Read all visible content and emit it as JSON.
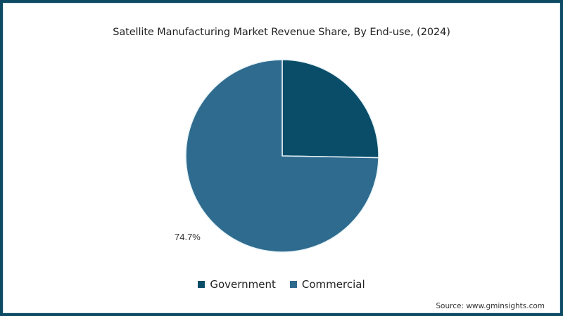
{
  "chart_data": {
    "type": "pie",
    "title": "Satellite Manufacturing Market Revenue Share, By End-use, (2024)",
    "categories": [
      "Government",
      "Commercial"
    ],
    "values": [
      25.3,
      74.7
    ],
    "unit": "%",
    "colors": [
      "#0a4d68",
      "#2f6b8e"
    ],
    "data_labels": [
      {
        "category": "Commercial",
        "text": "74.7%"
      }
    ],
    "start_angle": "12 o'clock, clockwise",
    "legend_position": "bottom"
  },
  "chart": {
    "title": "Satellite Manufacturing Market Revenue Share, By End-use, (2024)",
    "label_commercial": "74.7%",
    "legend": [
      {
        "label": "Government",
        "color": "#0a4d68"
      },
      {
        "label": "Commercial",
        "color": "#2f6b8e"
      }
    ],
    "source": "Source: www.gminsights.com"
  },
  "theme": {
    "frame_color": "#0d4a63"
  }
}
